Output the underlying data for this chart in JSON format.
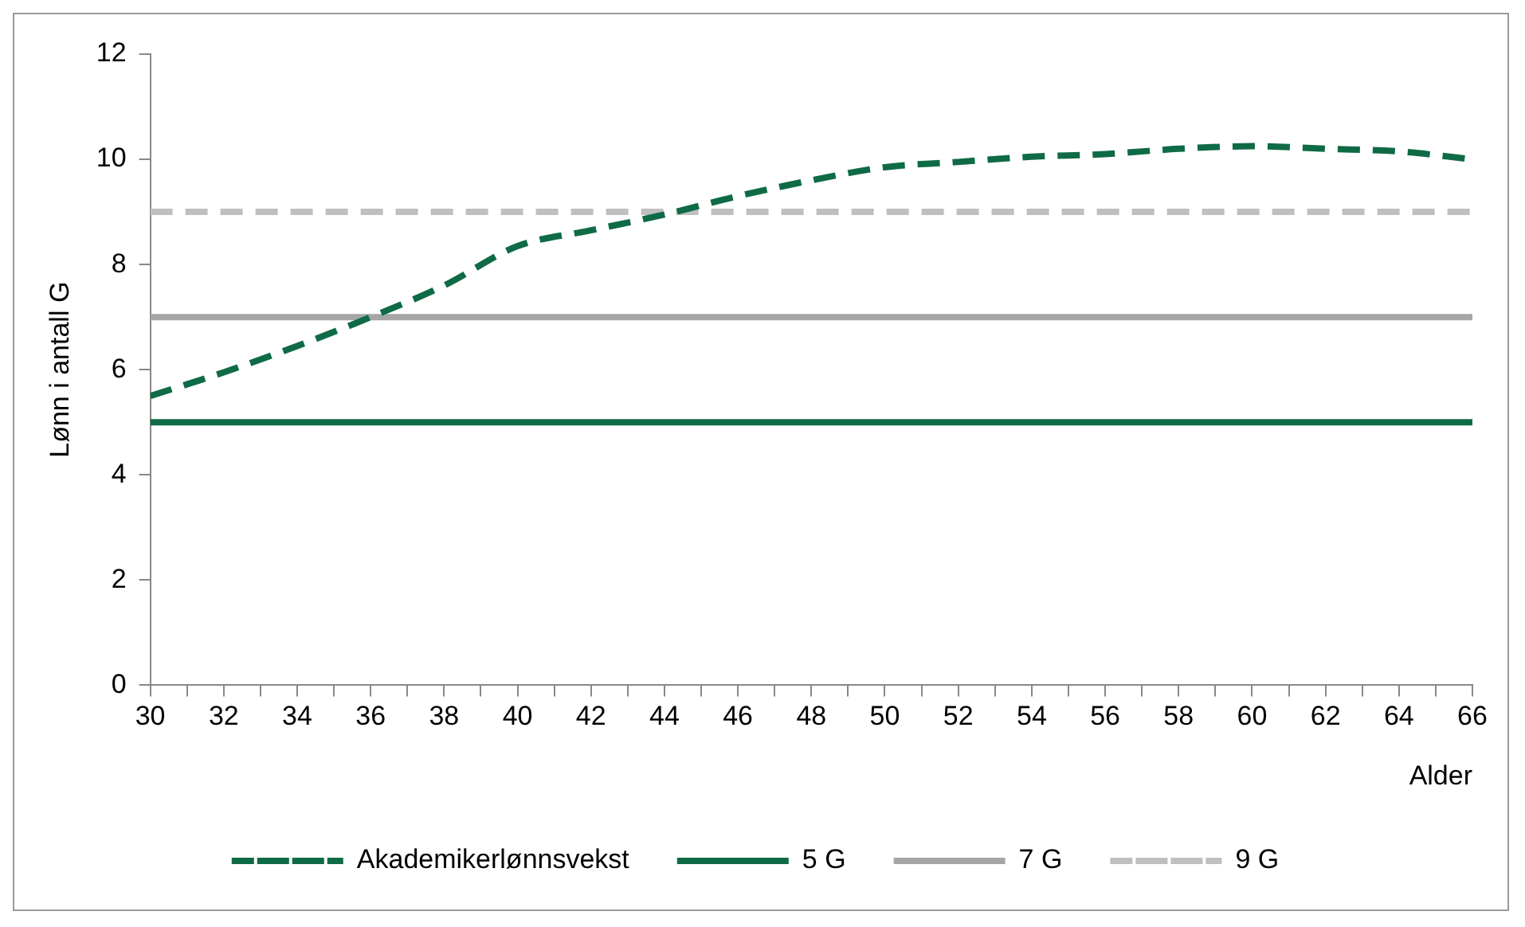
{
  "chart_data": {
    "type": "line",
    "xlabel": "Alder",
    "ylabel": "Lønn i antall G",
    "x": [
      30,
      32,
      34,
      36,
      38,
      40,
      42,
      44,
      46,
      48,
      50,
      52,
      54,
      56,
      58,
      60,
      62,
      64,
      66
    ],
    "series": [
      {
        "name": "Akademikerlønnsvekst",
        "color": "#0f6b45",
        "line_style": "dashed",
        "values": [
          5.5,
          5.95,
          6.45,
          7.0,
          7.6,
          8.35,
          8.65,
          8.95,
          9.3,
          9.6,
          9.85,
          9.95,
          10.05,
          10.1,
          10.2,
          10.25,
          10.2,
          10.15,
          10.0
        ]
      },
      {
        "name": "5 G",
        "color": "#0f6b45",
        "line_style": "solid",
        "values": [
          5,
          5,
          5,
          5,
          5,
          5,
          5,
          5,
          5,
          5,
          5,
          5,
          5,
          5,
          5,
          5,
          5,
          5,
          5
        ]
      },
      {
        "name": "7 G",
        "color": "#a6a6a6",
        "line_style": "solid",
        "values": [
          7,
          7,
          7,
          7,
          7,
          7,
          7,
          7,
          7,
          7,
          7,
          7,
          7,
          7,
          7,
          7,
          7,
          7,
          7
        ]
      },
      {
        "name": "9 G",
        "color": "#bfbfbf",
        "line_style": "dashed",
        "values": [
          9,
          9,
          9,
          9,
          9,
          9,
          9,
          9,
          9,
          9,
          9,
          9,
          9,
          9,
          9,
          9,
          9,
          9,
          9
        ]
      }
    ],
    "xlim": [
      30,
      66
    ],
    "xticks": [
      30,
      {
        "value": 31,
        "label": null
      },
      32,
      {
        "value": 33,
        "label": null
      },
      34,
      {
        "value": 35,
        "label": null
      },
      36,
      {
        "value": 37,
        "label": null
      },
      38,
      {
        "value": 39,
        "label": null
      },
      40,
      {
        "value": 41,
        "label": null
      },
      42,
      {
        "value": 43,
        "label": null
      },
      44,
      {
        "value": 45,
        "label": null
      },
      46,
      {
        "value": 47,
        "label": null
      },
      48,
      {
        "value": 49,
        "label": null
      },
      50,
      {
        "value": 51,
        "label": null
      },
      52,
      {
        "value": 53,
        "label": null
      },
      54,
      {
        "value": 55,
        "label": null
      },
      56,
      {
        "value": 57,
        "label": null
      },
      58,
      {
        "value": 59,
        "label": null
      },
      60,
      {
        "value": 61,
        "label": null
      },
      62,
      {
        "value": 63,
        "label": null
      },
      64,
      {
        "value": 65,
        "label": null
      },
      66
    ],
    "ylim": [
      0,
      12
    ],
    "yticks": [
      0,
      2,
      4,
      6,
      8,
      10,
      12
    ],
    "grid": false,
    "legend": "bottom",
    "marker": "none"
  }
}
